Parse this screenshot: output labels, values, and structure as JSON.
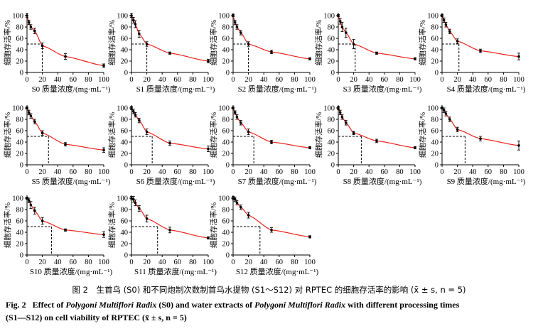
{
  "figure": {
    "ylabel": "细胞存活率/%",
    "x_ticks": [
      "0",
      "20",
      "40",
      "60",
      "80",
      "100"
    ],
    "y_ticks": [
      "0",
      "20",
      "40",
      "60",
      "80",
      "100"
    ],
    "xlim": [
      0,
      100
    ],
    "ylim": [
      0,
      105
    ],
    "colors": {
      "curve": "#e8211a",
      "points": "#000000",
      "ic50_lines": "#000000"
    }
  },
  "chart_data": [
    {
      "type": "scatter",
      "panel": "S0",
      "xlabel_prefix": "S0",
      "x": [
        0,
        2.5,
        5,
        10,
        20,
        50,
        100
      ],
      "y": [
        100,
        88,
        80,
        73,
        47,
        28,
        12
      ],
      "err": [
        3,
        4,
        4,
        5,
        5,
        5,
        3
      ],
      "ic50": 20
    },
    {
      "type": "scatter",
      "panel": "S1",
      "xlabel_prefix": "S1",
      "x": [
        0,
        2.5,
        5,
        10,
        20,
        50,
        100
      ],
      "y": [
        100,
        92,
        85,
        68,
        50,
        34,
        20
      ],
      "err": [
        3,
        5,
        6,
        6,
        4,
        2,
        3
      ],
      "ic50": 20
    },
    {
      "type": "scatter",
      "panel": "S2",
      "xlabel_prefix": "S2",
      "x": [
        0,
        2.5,
        5,
        10,
        20,
        50,
        100
      ],
      "y": [
        100,
        88,
        80,
        70,
        50,
        36,
        24
      ],
      "err": [
        2,
        4,
        4,
        4,
        4,
        3,
        2
      ],
      "ic50": 20
    },
    {
      "type": "scatter",
      "panel": "S3",
      "xlabel_prefix": "S3",
      "x": [
        0,
        2.5,
        5,
        10,
        20,
        50,
        100
      ],
      "y": [
        100,
        90,
        80,
        70,
        50,
        34,
        24
      ],
      "err": [
        2,
        5,
        8,
        8,
        8,
        2,
        2
      ],
      "ic50": 22
    },
    {
      "type": "scatter",
      "panel": "S4",
      "xlabel_prefix": "S4",
      "x": [
        0,
        2.5,
        5,
        10,
        20,
        50,
        100
      ],
      "y": [
        100,
        92,
        84,
        72,
        55,
        38,
        28
      ],
      "err": [
        2,
        4,
        4,
        4,
        4,
        3,
        6
      ],
      "ic50": 22
    },
    {
      "type": "scatter",
      "panel": "S5",
      "xlabel_prefix": "S5",
      "x": [
        0,
        2.5,
        5,
        10,
        20,
        50,
        100
      ],
      "y": [
        100,
        92,
        86,
        76,
        56,
        36,
        26
      ],
      "err": [
        2,
        4,
        4,
        4,
        4,
        3,
        4
      ],
      "ic50": 28
    },
    {
      "type": "scatter",
      "panel": "S6",
      "xlabel_prefix": "S6",
      "x": [
        0,
        2.5,
        5,
        10,
        20,
        50,
        100
      ],
      "y": [
        100,
        94,
        88,
        78,
        58,
        38,
        28
      ],
      "err": [
        3,
        4,
        4,
        4,
        5,
        4,
        5
      ],
      "ic50": 27
    },
    {
      "type": "scatter",
      "panel": "S7",
      "xlabel_prefix": "S7",
      "x": [
        0,
        2.5,
        5,
        10,
        20,
        50,
        100
      ],
      "y": [
        100,
        92,
        84,
        74,
        58,
        40,
        30
      ],
      "err": [
        2,
        3,
        4,
        4,
        5,
        3,
        2
      ],
      "ic50": 27
    },
    {
      "type": "scatter",
      "panel": "S8",
      "xlabel_prefix": "S8",
      "x": [
        0,
        2.5,
        5,
        10,
        20,
        50,
        100
      ],
      "y": [
        100,
        92,
        84,
        74,
        56,
        42,
        30
      ],
      "err": [
        3,
        4,
        4,
        4,
        3,
        3,
        2
      ],
      "ic50": 30
    },
    {
      "type": "scatter",
      "panel": "S9",
      "xlabel_prefix": "S9",
      "x": [
        0,
        2.5,
        5,
        10,
        20,
        50,
        100
      ],
      "y": [
        100,
        96,
        90,
        80,
        62,
        46,
        34
      ],
      "err": [
        2,
        4,
        4,
        4,
        4,
        4,
        8
      ],
      "ic50": 30
    },
    {
      "type": "scatter",
      "panel": "S10",
      "xlabel_prefix": "S10",
      "x": [
        0,
        2.5,
        5,
        10,
        20,
        50,
        100
      ],
      "y": [
        100,
        96,
        88,
        78,
        60,
        44,
        36
      ],
      "err": [
        2,
        4,
        6,
        6,
        6,
        2,
        5
      ],
      "ic50": 32
    },
    {
      "type": "scatter",
      "panel": "S11",
      "xlabel_prefix": "S11",
      "x": [
        0,
        2.5,
        5,
        10,
        20,
        50,
        100
      ],
      "y": [
        100,
        98,
        92,
        82,
        64,
        44,
        30
      ],
      "err": [
        3,
        5,
        5,
        5,
        6,
        5,
        2
      ],
      "ic50": 34
    },
    {
      "type": "scatter",
      "panel": "S12",
      "xlabel_prefix": "S12",
      "x": [
        0,
        2.5,
        5,
        10,
        20,
        50,
        100
      ],
      "y": [
        100,
        98,
        92,
        84,
        70,
        44,
        32
      ],
      "err": [
        3,
        4,
        4,
        4,
        5,
        4,
        2
      ],
      "ic50": 35
    }
  ],
  "xlabel_suffix": "质量浓度/(mg·mL⁻¹)",
  "captions": {
    "cn": "图 2　生首乌 (S0) 和不同炮制次数制首乌水提物 (S1～S12) 对 RPTEC 的细胞存活率的影响 (x̄ ± s, n = 5)",
    "en_fig": "Fig. 2",
    "en_line1_a": "Effect of ",
    "en_line1_b": "Polygoni Multiflori Radix",
    "en_line1_c": " (S0) and water extracts of ",
    "en_line1_d": "Polygoni Multiflori Radix",
    "en_line1_e": " with different processing times",
    "en_line2": "(S1—S12) on cell viability of RPTEC (x̄ ± s, n = 5)"
  }
}
